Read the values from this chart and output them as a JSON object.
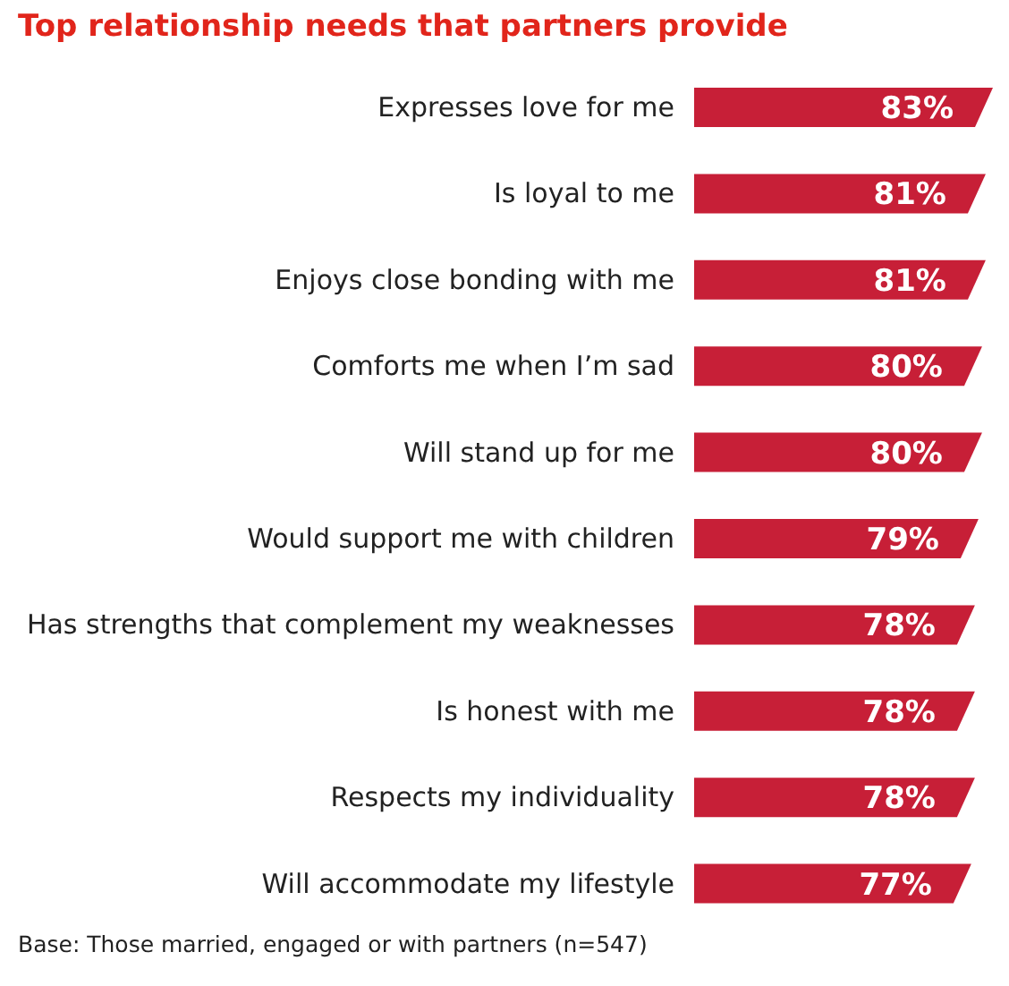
{
  "chart_data": {
    "type": "bar",
    "orientation": "horizontal",
    "title": "Top relationship needs that partners provide",
    "categories": [
      "Expresses love for me",
      "Is loyal to me",
      "Enjoys close bonding with me",
      "Comforts me when I’m sad",
      "Will stand up for me",
      "Would support me with children",
      "Has strengths that complement my weaknesses",
      "Is honest with me",
      "Respects my individuality",
      "Will accommodate my lifestyle"
    ],
    "values": [
      83,
      81,
      81,
      80,
      80,
      79,
      78,
      78,
      78,
      77
    ],
    "value_labels": [
      "83%",
      "81%",
      "81%",
      "80%",
      "80%",
      "79%",
      "78%",
      "78%",
      "78%",
      "77%"
    ],
    "color": "#c71f37",
    "annotations": [
      "Base: Those married, engaged or with partners (n=547)"
    ]
  }
}
